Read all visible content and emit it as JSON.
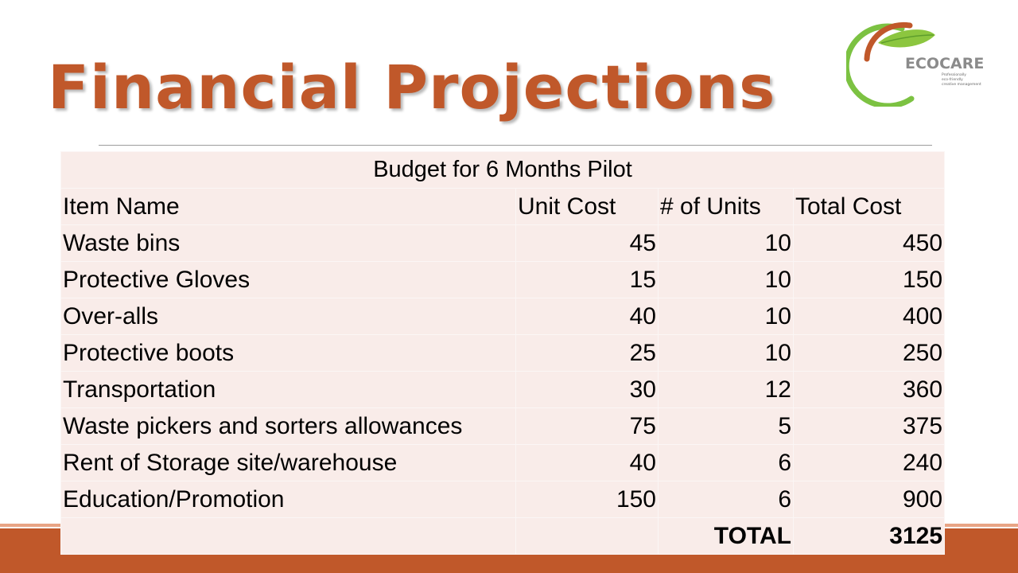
{
  "slide": {
    "title": "Financial Projections",
    "logo": {
      "name": "ECOCARE",
      "tagline_lines": [
        "Professionally",
        "eco-friendly",
        "creative management"
      ]
    },
    "colors": {
      "accent": "#c0582a",
      "table_fill": "#f9ece9",
      "logo_green": "#7cc242"
    }
  },
  "table": {
    "caption": "Budget for 6 Months Pilot",
    "headers": [
      "Item Name",
      "Unit Cost",
      "# of Units",
      "Total Cost"
    ],
    "rows": [
      [
        "Waste bins",
        "45",
        "10",
        "450"
      ],
      [
        "Protective Gloves",
        "15",
        "10",
        "150"
      ],
      [
        "Over-alls",
        "40",
        "10",
        "400"
      ],
      [
        "Protective boots",
        "25",
        "10",
        "250"
      ],
      [
        "Transportation",
        "30",
        "12",
        "360"
      ],
      [
        "Waste pickers and sorters allowances",
        "75",
        "5",
        "375"
      ],
      [
        "Rent of Storage site/warehouse",
        "40",
        "6",
        "240"
      ],
      [
        "Education/Promotion",
        "150",
        "6",
        "900"
      ]
    ],
    "total_label": "TOTAL",
    "total_value": "3125"
  }
}
